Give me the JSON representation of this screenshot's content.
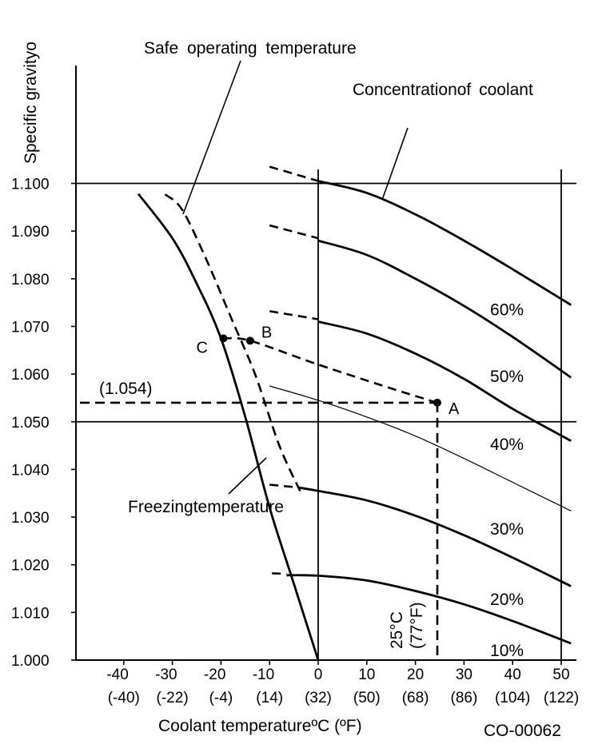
{
  "chart_data": {
    "type": "line",
    "title": "",
    "ylabel": "Specific gravityo",
    "xlabel": "Coolant temperatureºC (ºF)",
    "code": "CO-00062",
    "x_ticks": [
      {
        "c": -40,
        "c_label": "-40",
        "f_label": "(-40)"
      },
      {
        "c": -30,
        "c_label": "-30",
        "f_label": "(-22)"
      },
      {
        "c": -20,
        "c_label": "-20",
        "f_label": "(-4)"
      },
      {
        "c": -10,
        "c_label": "-10",
        "f_label": "(14)"
      },
      {
        "c": 0,
        "c_label": "0",
        "f_label": "(32)"
      },
      {
        "c": 10,
        "c_label": "10",
        "f_label": "(50)"
      },
      {
        "c": 20,
        "c_label": "20",
        "f_label": "(68)"
      },
      {
        "c": 30,
        "c_label": "30",
        "f_label": "(86)"
      },
      {
        "c": 40,
        "c_label": "40",
        "f_label": "(104)"
      },
      {
        "c": 50,
        "c_label": "50",
        "f_label": "(122)"
      }
    ],
    "y_ticks": [
      "1.000",
      "1.010",
      "1.020",
      "1.030",
      "1.040",
      "1.050",
      "1.060",
      "1.070",
      "1.080",
      "1.090",
      "1.100"
    ],
    "xlim": [
      -50,
      53
    ],
    "ylim": [
      1.0,
      1.1045
    ],
    "reference_lines": {
      "horizontal": [
        1.1,
        1.05
      ],
      "vertical": [
        0,
        50
      ]
    },
    "concentration_series": [
      {
        "name": "10%",
        "dashed": [],
        "solid": []
      },
      {
        "name": "20%",
        "dashed": [
          [
            -9.5,
            1.0182
          ],
          [
            -6.5,
            1.0181
          ]
        ],
        "solid": [
          [
            -6.5,
            1.0178
          ],
          [
            0,
            1.0177
          ],
          [
            10,
            1.0167
          ],
          [
            20,
            1.0145
          ],
          [
            30,
            1.0117
          ],
          [
            40,
            1.0082
          ],
          [
            52,
            1.0035
          ]
        ]
      },
      {
        "name": "30%",
        "dashed": [
          [
            -10,
            1.0368
          ],
          [
            -4,
            1.0362
          ]
        ],
        "solid": [
          [
            -4,
            1.0362
          ],
          [
            0,
            1.0355
          ],
          [
            10,
            1.0335
          ],
          [
            20,
            1.0303
          ],
          [
            30,
            1.0262
          ],
          [
            40,
            1.0215
          ],
          [
            52,
            1.0155
          ]
        ]
      },
      {
        "name": "40%",
        "thin": true,
        "dashed": [],
        "solid": [
          [
            -10,
            1.0575
          ],
          [
            0,
            1.0545
          ],
          [
            10,
            1.051
          ],
          [
            20,
            1.047
          ],
          [
            30,
            1.0423
          ],
          [
            40,
            1.0373
          ],
          [
            52,
            1.0313
          ]
        ]
      },
      {
        "name": "50%",
        "dashed": [
          [
            -10,
            1.0732
          ],
          [
            0,
            1.0715
          ]
        ],
        "solid": [
          [
            0,
            1.071
          ],
          [
            10,
            1.0685
          ],
          [
            20,
            1.0643
          ],
          [
            30,
            1.059
          ],
          [
            40,
            1.0527
          ],
          [
            52,
            1.046
          ]
        ]
      },
      {
        "name": "60%",
        "dashed": [
          [
            -10,
            1.0912
          ],
          [
            0,
            1.0885
          ]
        ],
        "solid": [
          [
            0,
            1.088
          ],
          [
            10,
            1.085
          ],
          [
            20,
            1.08
          ],
          [
            30,
            1.0743
          ],
          [
            40,
            1.0678
          ],
          [
            52,
            1.0593
          ]
        ]
      },
      {
        "name": "",
        "dashed": [
          [
            -10,
            1.1035
          ],
          [
            0,
            1.1005
          ]
        ],
        "solid": [
          [
            0,
            1.1005
          ],
          [
            10,
            1.098
          ],
          [
            20,
            1.0935
          ],
          [
            30,
            1.088
          ],
          [
            40,
            1.082
          ],
          [
            52,
            1.0745
          ]
        ]
      }
    ],
    "freezing_temperature_curve": [
      [
        -37,
        1.0978
      ],
      [
        -30,
        1.0885
      ],
      [
        -25,
        1.079
      ],
      [
        -20,
        1.0675
      ],
      [
        -15,
        1.051
      ],
      [
        -10,
        1.032
      ],
      [
        -5,
        1.016
      ],
      [
        0,
        1.0
      ]
    ],
    "safe_operating_curve": [
      [
        -31.5,
        1.0977
      ],
      [
        -28,
        1.0945
      ],
      [
        -23,
        1.084
      ],
      [
        -18,
        1.072
      ],
      [
        -13,
        1.06
      ],
      [
        -8,
        1.045
      ],
      [
        -3.5,
        1.035
      ]
    ],
    "points": [
      {
        "label": "A",
        "c": 24.5,
        "sg": 1.054
      },
      {
        "label": "B",
        "c": -14,
        "sg": 1.067
      },
      {
        "label": "C",
        "c": -19.5,
        "sg": 1.0675
      }
    ],
    "path_A_B_C": [
      [
        24.5,
        1.054
      ],
      [
        15,
        1.057
      ],
      [
        0,
        1.062
      ],
      [
        -14,
        1.067
      ],
      [
        -19.5,
        1.0675
      ]
    ],
    "readout_horizontal": [
      [
        -49,
        1.054
      ],
      [
        24.5,
        1.054
      ]
    ],
    "readout_vertical": [
      [
        24.5,
        1.054
      ],
      [
        24.5,
        1.0
      ]
    ],
    "annotations": {
      "safe_operating": "Safe operating temperature",
      "concentration": "Concentrationof coolant",
      "freezing": "Freezingtemperature",
      "readout_value": "(1.054)",
      "temp_c": "25°C",
      "temp_f": "(77°F)"
    },
    "percent_labels": [
      {
        "text": "60%",
        "c": 38,
        "sg": 1.0735
      },
      {
        "text": "50%",
        "c": 38,
        "sg": 1.0595
      },
      {
        "text": "40%",
        "c": 38,
        "sg": 1.0453
      },
      {
        "text": "30%",
        "c": 38,
        "sg": 1.0275
      },
      {
        "text": "20%",
        "c": 38,
        "sg": 1.0127
      },
      {
        "text": "10%",
        "c": 38,
        "sg": 1.002
      }
    ]
  }
}
